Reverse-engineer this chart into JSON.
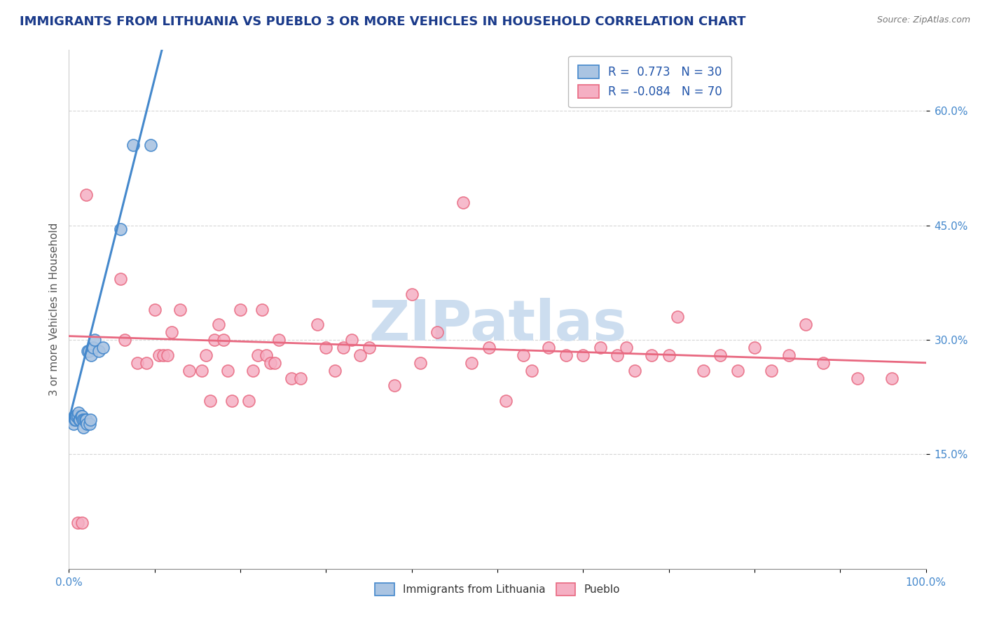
{
  "title": "IMMIGRANTS FROM LITHUANIA VS PUEBLO 3 OR MORE VEHICLES IN HOUSEHOLD CORRELATION CHART",
  "source": "Source: ZipAtlas.com",
  "ylabel": "3 or more Vehicles in Household",
  "xlim": [
    0.0,
    1.0
  ],
  "ylim": [
    0.0,
    0.68
  ],
  "ytick_values": [
    0.15,
    0.3,
    0.45,
    0.6
  ],
  "ytick_labels": [
    "15.0%",
    "30.0%",
    "45.0%",
    "60.0%"
  ],
  "xtick_values": [
    0.0,
    0.1,
    0.2,
    0.3,
    0.4,
    0.5,
    0.6,
    0.7,
    0.8,
    0.9,
    1.0
  ],
  "legend1_r": " 0.773",
  "legend1_n": "30",
  "legend2_r": "-0.084",
  "legend2_n": "70",
  "blue_color": "#aac4e2",
  "pink_color": "#f5afc3",
  "blue_line_color": "#4488cc",
  "pink_line_color": "#e86880",
  "title_color": "#1a3a8a",
  "source_color": "#777777",
  "watermark": "ZIPatlas",
  "watermark_color": "#ccddef",
  "background_color": "#ffffff",
  "grid_color": "#cccccc",
  "blue_scatter_x": [
    0.004,
    0.005,
    0.006,
    0.007,
    0.008,
    0.009,
    0.01,
    0.011,
    0.012,
    0.013,
    0.014,
    0.015,
    0.016,
    0.017,
    0.018,
    0.019,
    0.02,
    0.021,
    0.022,
    0.023,
    0.024,
    0.025,
    0.026,
    0.028,
    0.03,
    0.035,
    0.04,
    0.06,
    0.075,
    0.095
  ],
  "blue_scatter_y": [
    0.195,
    0.19,
    0.2,
    0.195,
    0.195,
    0.2,
    0.2,
    0.205,
    0.195,
    0.195,
    0.2,
    0.2,
    0.195,
    0.185,
    0.195,
    0.195,
    0.195,
    0.19,
    0.285,
    0.285,
    0.19,
    0.195,
    0.28,
    0.29,
    0.3,
    0.285,
    0.29,
    0.445,
    0.555,
    0.555
  ],
  "pink_scatter_x": [
    0.01,
    0.015,
    0.02,
    0.06,
    0.065,
    0.08,
    0.09,
    0.1,
    0.105,
    0.11,
    0.115,
    0.12,
    0.13,
    0.14,
    0.155,
    0.16,
    0.165,
    0.17,
    0.175,
    0.18,
    0.185,
    0.19,
    0.2,
    0.21,
    0.215,
    0.22,
    0.225,
    0.23,
    0.235,
    0.24,
    0.245,
    0.26,
    0.27,
    0.29,
    0.3,
    0.31,
    0.32,
    0.33,
    0.34,
    0.35,
    0.38,
    0.4,
    0.41,
    0.43,
    0.46,
    0.47,
    0.49,
    0.51,
    0.53,
    0.54,
    0.56,
    0.58,
    0.6,
    0.62,
    0.64,
    0.65,
    0.66,
    0.68,
    0.7,
    0.71,
    0.74,
    0.76,
    0.78,
    0.8,
    0.82,
    0.84,
    0.86,
    0.88,
    0.92,
    0.96
  ],
  "pink_scatter_y": [
    0.06,
    0.06,
    0.49,
    0.38,
    0.3,
    0.27,
    0.27,
    0.34,
    0.28,
    0.28,
    0.28,
    0.31,
    0.34,
    0.26,
    0.26,
    0.28,
    0.22,
    0.3,
    0.32,
    0.3,
    0.26,
    0.22,
    0.34,
    0.22,
    0.26,
    0.28,
    0.34,
    0.28,
    0.27,
    0.27,
    0.3,
    0.25,
    0.25,
    0.32,
    0.29,
    0.26,
    0.29,
    0.3,
    0.28,
    0.29,
    0.24,
    0.36,
    0.27,
    0.31,
    0.48,
    0.27,
    0.29,
    0.22,
    0.28,
    0.26,
    0.29,
    0.28,
    0.28,
    0.29,
    0.28,
    0.29,
    0.26,
    0.28,
    0.28,
    0.33,
    0.26,
    0.28,
    0.26,
    0.29,
    0.26,
    0.28,
    0.32,
    0.27,
    0.25,
    0.25
  ],
  "blue_line_x0": 0.0,
  "blue_line_y0": 0.195,
  "blue_line_x1": 0.095,
  "blue_line_y1": 0.62,
  "pink_line_x0": 0.0,
  "pink_line_y0": 0.305,
  "pink_line_x1": 1.0,
  "pink_line_y1": 0.27
}
